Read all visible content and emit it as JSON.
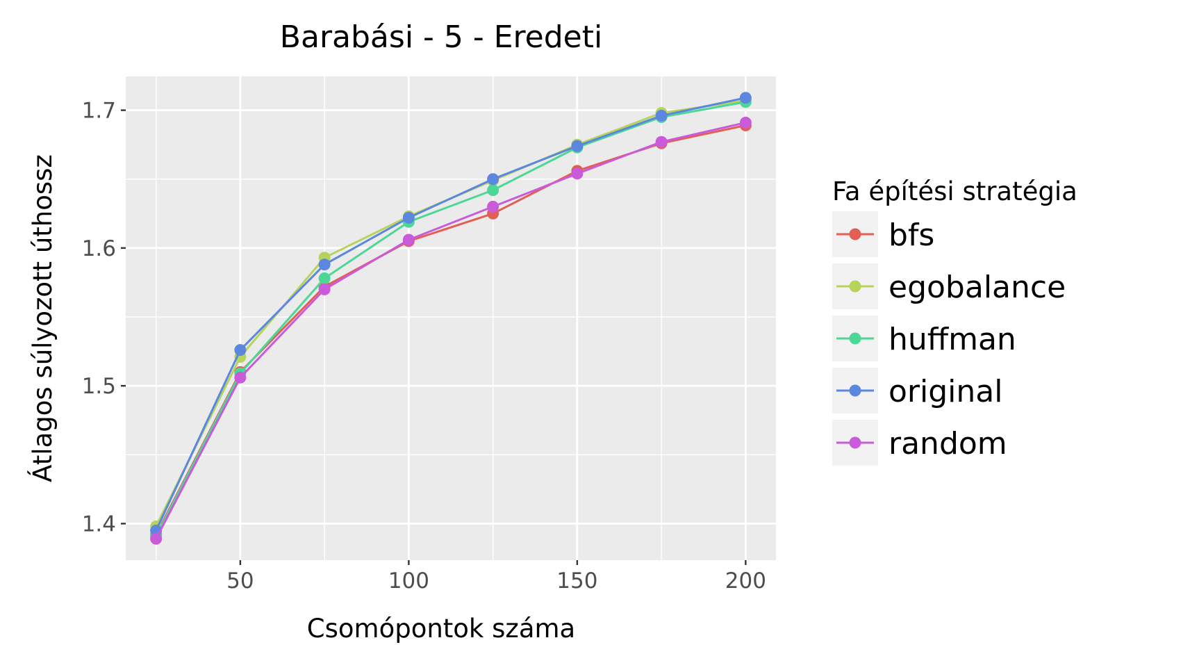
{
  "chart_data": {
    "type": "line",
    "title": "Barabási - 5 - Eredeti",
    "xlabel": "Csomópontok száma",
    "ylabel": "Átlagos súlyozott úthossz",
    "x": [
      25,
      50,
      75,
      100,
      125,
      150,
      175,
      200
    ],
    "xlim": [
      16,
      209
    ],
    "ylim": [
      1.3735,
      1.7245
    ],
    "xticks": [
      50,
      100,
      150,
      200
    ],
    "yticks": [
      1.4,
      1.5,
      1.6,
      1.7
    ],
    "xtick_labels": [
      "50",
      "100",
      "150",
      "200"
    ],
    "ytick_labels": [
      "1.4",
      "1.5",
      "1.6",
      "1.7"
    ],
    "grid": true,
    "legend": {
      "title": "Fa építési stratégia",
      "position": "right"
    },
    "series": [
      {
        "name": "bfs",
        "color": "#E15F55",
        "values": [
          1.392,
          1.51,
          1.572,
          1.605,
          1.625,
          1.656,
          1.676,
          1.689
        ]
      },
      {
        "name": "egobalance",
        "color": "#B6D45C",
        "values": [
          1.398,
          1.521,
          1.593,
          1.623,
          1.649,
          1.675,
          1.698,
          1.707
        ]
      },
      {
        "name": "huffman",
        "color": "#4DD796",
        "values": [
          1.391,
          1.509,
          1.578,
          1.619,
          1.642,
          1.673,
          1.695,
          1.706
        ]
      },
      {
        "name": "original",
        "color": "#5B87DE",
        "values": [
          1.395,
          1.526,
          1.588,
          1.622,
          1.65,
          1.674,
          1.696,
          1.709
        ]
      },
      {
        "name": "random",
        "color": "#C95AD9",
        "values": [
          1.389,
          1.506,
          1.57,
          1.606,
          1.63,
          1.654,
          1.677,
          1.691
        ]
      }
    ]
  }
}
